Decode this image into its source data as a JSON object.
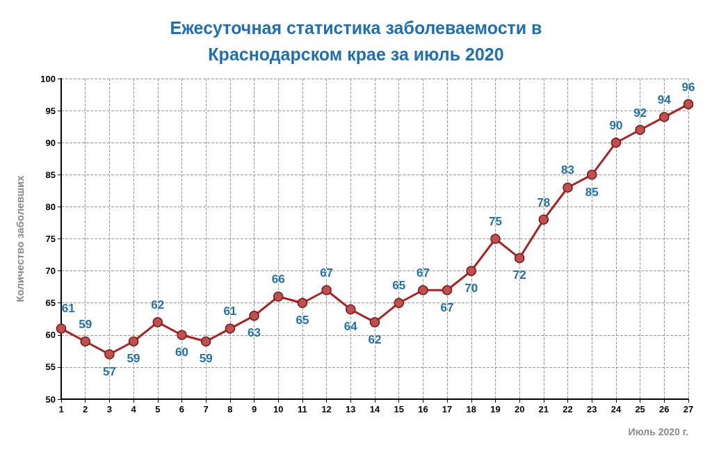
{
  "chart_data": {
    "type": "line",
    "title": "Ежесуточная статистика заболеваемости в\nКраснодарском крае за июль 2020",
    "xlabel": "Июль 2020 г.",
    "ylabel": "Количество заболевших",
    "x": [
      1,
      2,
      3,
      4,
      5,
      6,
      7,
      8,
      9,
      10,
      11,
      12,
      13,
      14,
      15,
      16,
      17,
      18,
      19,
      20,
      21,
      22,
      23,
      24,
      25,
      26,
      27
    ],
    "series": [
      {
        "color": "#b01e1e",
        "values": [
          61,
          59,
          57,
          59,
          62,
          60,
          59,
          61,
          63,
          66,
          65,
          67,
          64,
          62,
          65,
          67,
          67,
          70,
          75,
          72,
          78,
          83,
          85,
          90,
          92,
          94,
          96
        ]
      }
    ],
    "xlim": [
      1,
      27
    ],
    "xticks": [
      1,
      2,
      3,
      4,
      5,
      6,
      7,
      8,
      9,
      10,
      11,
      12,
      13,
      14,
      15,
      16,
      17,
      18,
      19,
      20,
      21,
      22,
      23,
      24,
      25,
      26,
      27
    ],
    "ylim": [
      50,
      100
    ],
    "yticks": [
      50,
      55,
      60,
      65,
      70,
      75,
      80,
      85,
      90,
      95,
      100
    ],
    "grid": true,
    "marker": "circle",
    "line_style": "solid",
    "data_labels": true
  }
}
